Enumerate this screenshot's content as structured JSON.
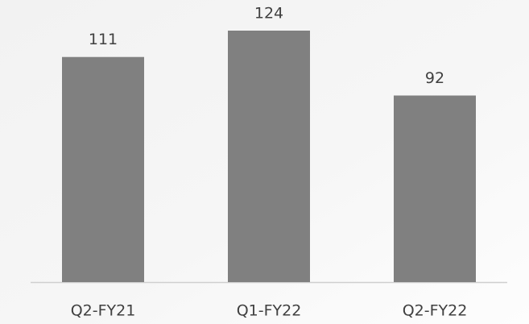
{
  "chart_data": {
    "type": "bar",
    "categories": [
      "Q2-FY21",
      "Q1-FY22",
      "Q2-FY22"
    ],
    "values": [
      111,
      124,
      92
    ],
    "color": "#808080",
    "grid": false
  }
}
